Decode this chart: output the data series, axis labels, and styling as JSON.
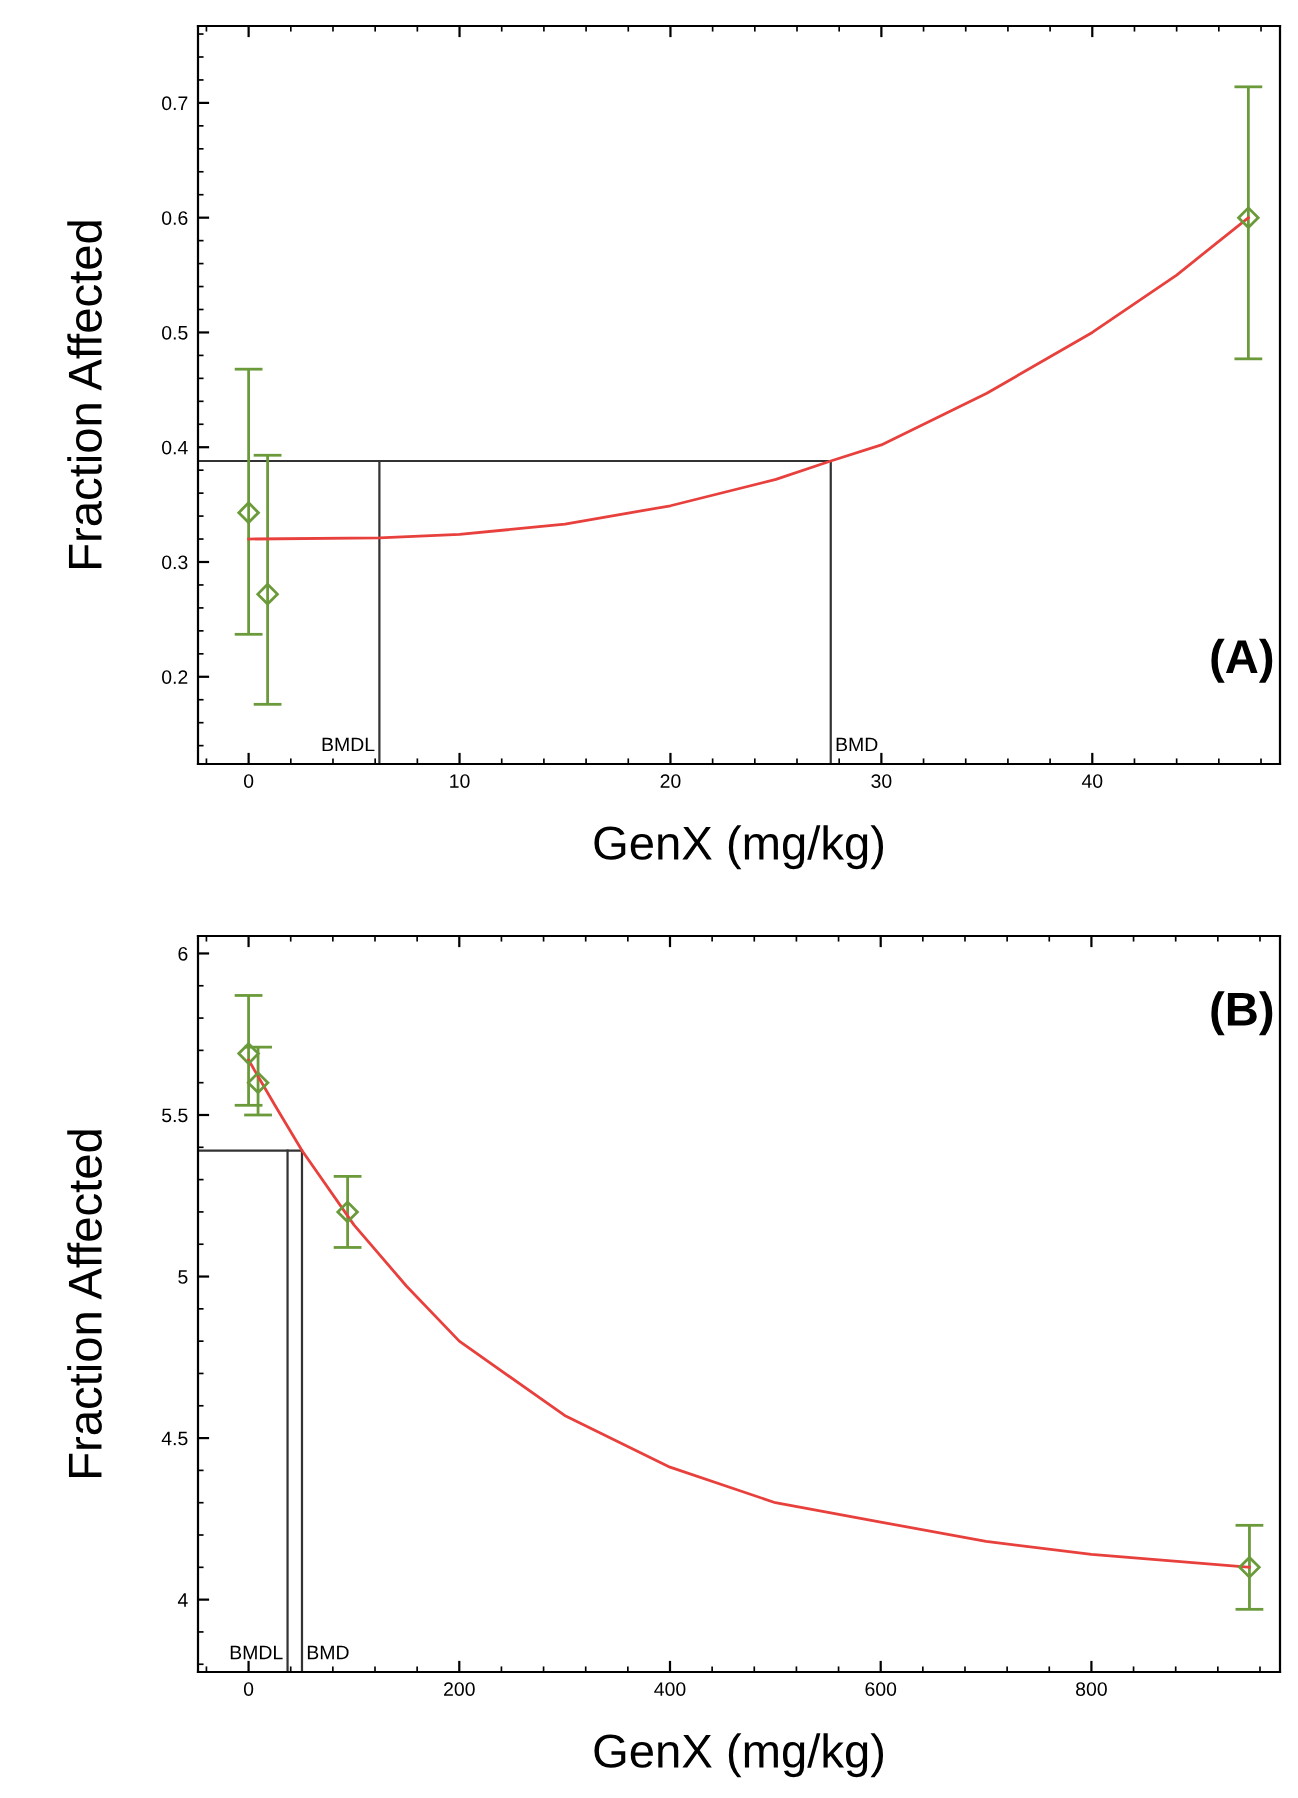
{
  "chart_data": [
    {
      "type": "scatter",
      "xlabel": "GenX (mg/kg)",
      "ylabel": "Fraction Affected",
      "xlim": [
        -2.4,
        48.9
      ],
      "ylim": [
        0.124,
        0.767
      ],
      "xticks": [
        0,
        10,
        20,
        30,
        40
      ],
      "yticks": [
        0.2,
        0.3,
        0.4,
        0.5,
        0.6,
        0.7
      ],
      "grid": false,
      "annotations": [
        {
          "text": "(A)"
        }
      ],
      "series": [
        {
          "marker": "diamond",
          "color": "#6a9a3a",
          "x": [
            0,
            0.9,
            47.4
          ],
          "values": [
            0.343,
            0.272,
            0.6
          ],
          "errors": [
            [
              0.237,
              0.468
            ],
            [
              0.176,
              0.393
            ],
            [
              0.477,
              0.714
            ]
          ]
        },
        {
          "type": "line",
          "color": "#e8403c",
          "x": [
            0,
            6.2,
            10,
            15,
            20,
            25,
            27.6,
            30,
            35,
            40,
            44,
            47.4
          ],
          "values": [
            0.32,
            0.321,
            0.324,
            0.333,
            0.349,
            0.372,
            0.388,
            0.402,
            0.447,
            0.5,
            0.55,
            0.6
          ]
        }
      ],
      "ref_lines": [
        {
          "axis": "y",
          "value": 0.388,
          "color": "#333333"
        },
        {
          "axis": "x",
          "value": 6.2,
          "label": "BMDL",
          "color": "#333333"
        },
        {
          "axis": "x",
          "value": 27.6,
          "label": "BMD",
          "color": "#333333"
        }
      ]
    },
    {
      "type": "scatter",
      "xlabel": "GenX (mg/kg)",
      "ylabel": "Fraction Affected",
      "xlim": [
        -48,
        979
      ],
      "ylim": [
        3.776,
        6.054
      ],
      "xticks": [
        0,
        200,
        400,
        600,
        800
      ],
      "yticks": [
        4,
        4.5,
        5,
        5.5,
        6
      ],
      "grid": false,
      "annotations": [
        {
          "text": "(B)"
        }
      ],
      "series": [
        {
          "marker": "diamond",
          "color": "#6a9a3a",
          "x": [
            0,
            9,
            94,
            950
          ],
          "values": [
            5.69,
            5.6,
            5.2,
            4.1
          ],
          "errors": [
            [
              5.53,
              5.87
            ],
            [
              5.5,
              5.71
            ],
            [
              5.09,
              5.31
            ],
            [
              3.97,
              4.23
            ]
          ]
        },
        {
          "type": "line",
          "color": "#e8403c",
          "x": [
            0,
            25,
            50.7,
            100,
            150,
            200,
            300,
            400,
            500,
            600,
            700,
            800,
            950
          ],
          "values": [
            5.67,
            5.53,
            5.39,
            5.16,
            4.97,
            4.8,
            4.57,
            4.41,
            4.3,
            4.24,
            4.18,
            4.14,
            4.1
          ]
        }
      ],
      "ref_lines": [
        {
          "axis": "y",
          "value": 5.39,
          "color": "#333333"
        },
        {
          "axis": "x",
          "value": 37,
          "label": "BMDL",
          "color": "#333333"
        },
        {
          "axis": "x",
          "value": 50.7,
          "label": "BMD",
          "color": "#333333"
        }
      ]
    }
  ]
}
